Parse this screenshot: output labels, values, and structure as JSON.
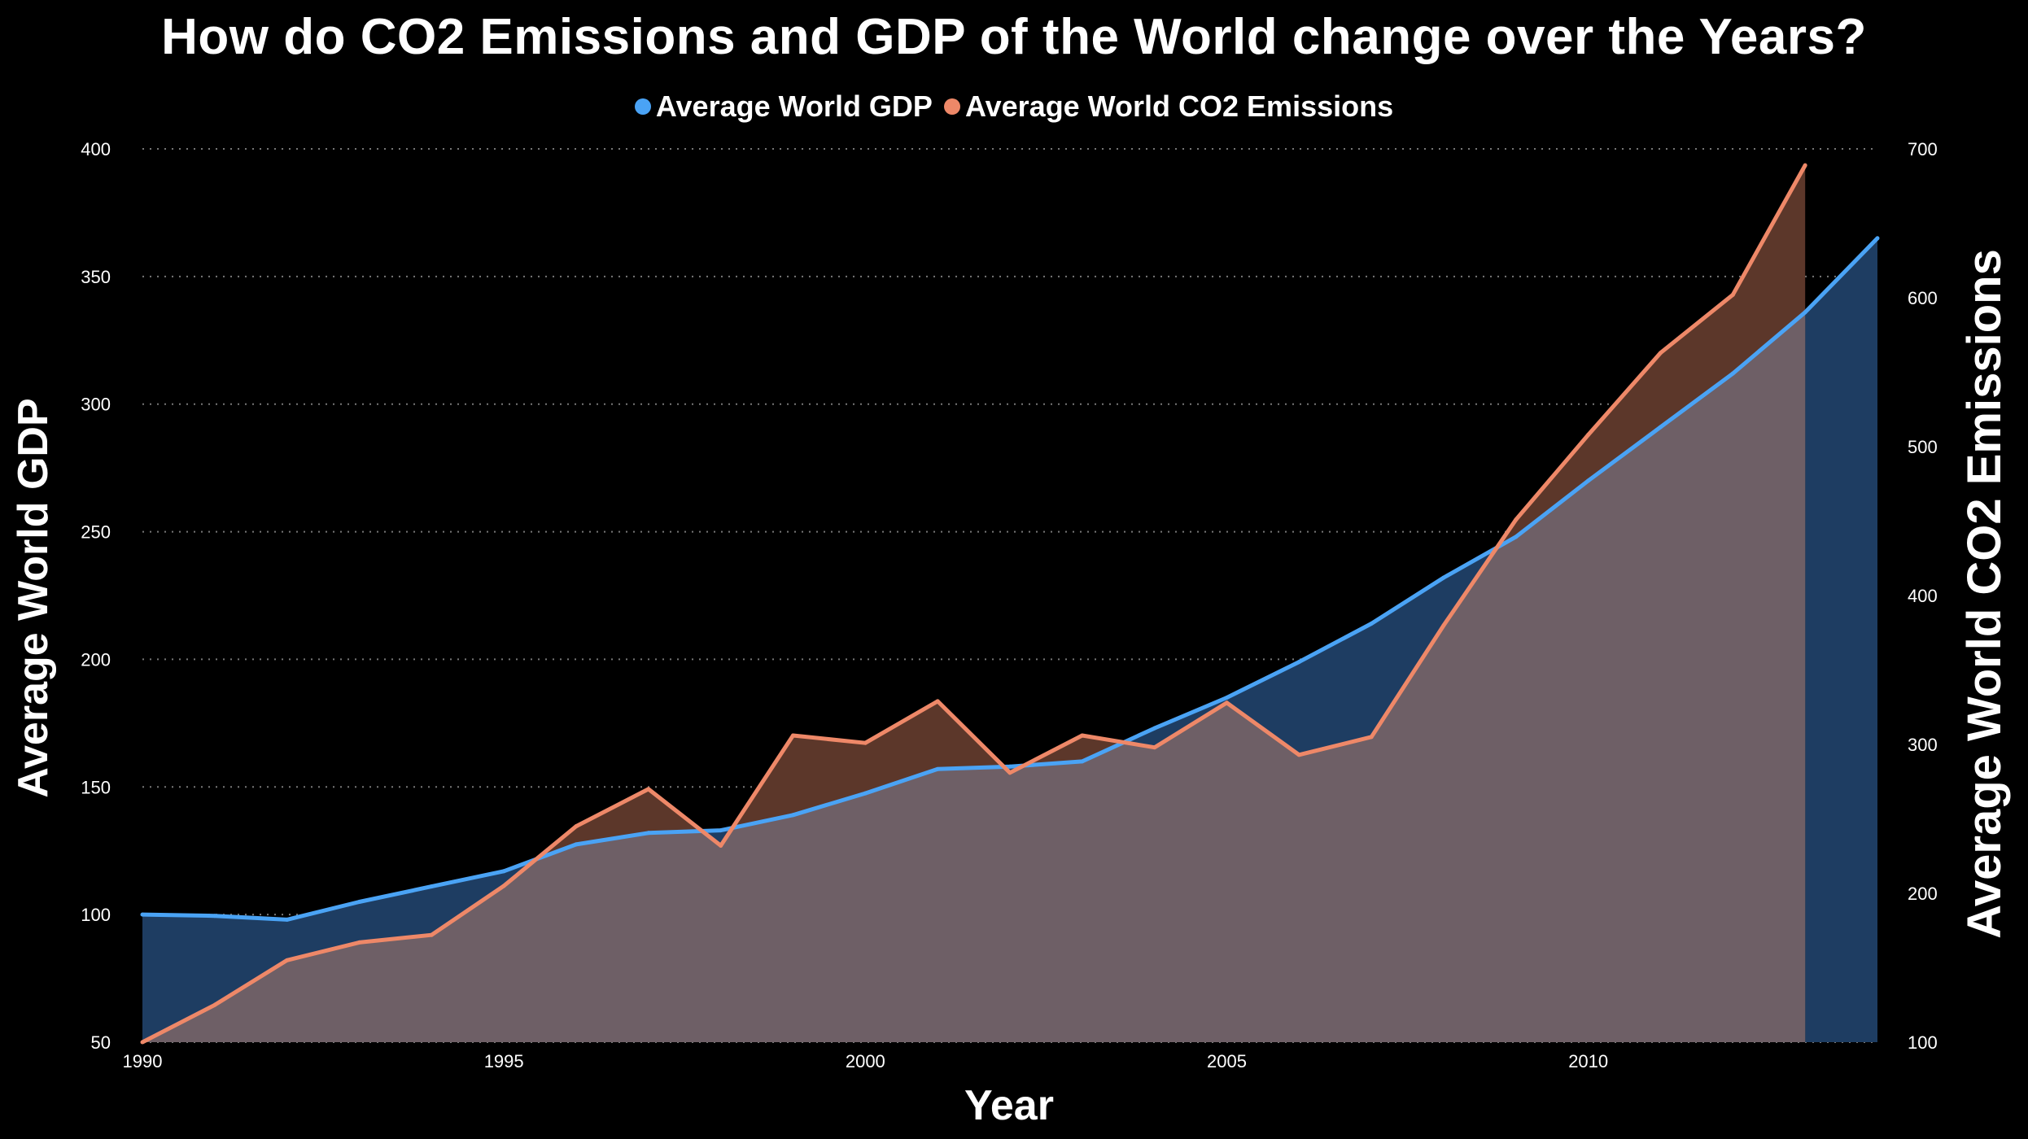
{
  "title": "How do CO2 Emissions and GDP of the World change over the Years?",
  "legend": [
    {
      "label": "Average World GDP",
      "color": "#4aa3f5"
    },
    {
      "label": "Average World CO2 Emissions",
      "color": "#ee8868"
    }
  ],
  "chart_data": {
    "type": "area",
    "title": "How do CO2 Emissions and GDP of the World change over the Years?",
    "xlabel": "Year",
    "ylabel_left": "Average World GDP",
    "ylabel_right": "Average World CO2 Emissions",
    "xlim": [
      1990,
      2014
    ],
    "ylim_left": [
      50,
      400
    ],
    "ylim_right": [
      100,
      700
    ],
    "x_ticks": [
      "1990",
      "1995",
      "2000",
      "2005",
      "2010"
    ],
    "y_ticks_left": [
      "50",
      "100",
      "150",
      "200",
      "250",
      "300",
      "350",
      "400"
    ],
    "y_ticks_right": [
      "100",
      "200",
      "300",
      "400",
      "500",
      "600",
      "700"
    ],
    "grid": true,
    "legend_position": "top-center",
    "series": [
      {
        "name": "Average World GDP",
        "axis": "left",
        "color": "#4aa3f5",
        "fill": "#1e3d62",
        "x": [
          1990,
          1991,
          1992,
          1993,
          1994,
          1995,
          1996,
          1997,
          1998,
          1999,
          2000,
          2001,
          2002,
          2003,
          2004,
          2005,
          2006,
          2007,
          2008,
          2009,
          2010,
          2011,
          2012,
          2013,
          2014
        ],
        "values": [
          100,
          99.5,
          98,
          105,
          111,
          117,
          127.5,
          132,
          133,
          139,
          147.5,
          157,
          158,
          160,
          173,
          185,
          199,
          214,
          232,
          248,
          270,
          291,
          312,
          336,
          365
        ]
      },
      {
        "name": "Average World CO2 Emissions",
        "axis": "right",
        "color": "#ee8868",
        "fill": "#5c372a",
        "x": [
          1990,
          1991,
          1992,
          1993,
          1994,
          1995,
          1996,
          1997,
          1998,
          1999,
          2000,
          2001,
          2002,
          2003,
          2004,
          2005,
          2006,
          2007,
          2008,
          2009,
          2010,
          2011,
          2012,
          2013
        ],
        "values": [
          100,
          125,
          155,
          167,
          172,
          205,
          245,
          270,
          232,
          306,
          301,
          329,
          281,
          306,
          298,
          328,
          293,
          305,
          380,
          451,
          508,
          563,
          602,
          689
        ]
      }
    ]
  }
}
